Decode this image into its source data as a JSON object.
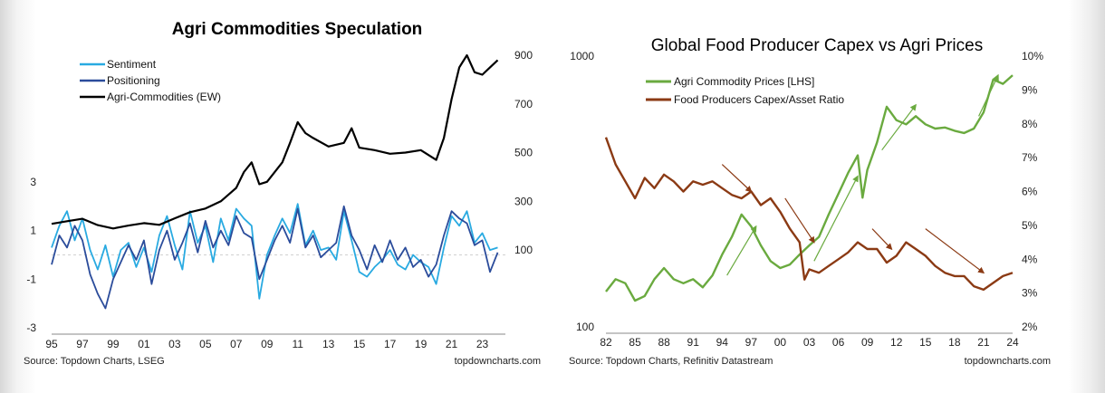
{
  "chart_data": [
    {
      "type": "line",
      "title": "Agri Commodities Speculation",
      "x_ticks": [
        "95",
        "97",
        "99",
        "01",
        "03",
        "05",
        "07",
        "09",
        "11",
        "13",
        "15",
        "17",
        "19",
        "21",
        "23"
      ],
      "xlim": [
        1995,
        2024.5
      ],
      "y_left_ticks": [
        "3",
        "1",
        "-1",
        "-3"
      ],
      "y_left_lim": [
        -3,
        3
      ],
      "y_right_ticks": [
        "900",
        "700",
        "500",
        "300",
        "100"
      ],
      "y_right_lim": [
        -220,
        900
      ],
      "series": [
        {
          "name": "Sentiment",
          "axis": "left",
          "color": "#29aae1",
          "x": [
            1995,
            1995.5,
            1996,
            1996.5,
            1997,
            1997.5,
            1998,
            1998.5,
            1999,
            1999.5,
            2000,
            2000.5,
            2001,
            2001.5,
            2002,
            2002.5,
            2003,
            2003.5,
            2004,
            2004.5,
            2005,
            2005.5,
            2006,
            2006.5,
            2007,
            2007.5,
            2008,
            2008.5,
            2009,
            2009.5,
            2010,
            2010.5,
            2011,
            2011.5,
            2012,
            2012.5,
            2013,
            2013.5,
            2014,
            2014.5,
            2015,
            2015.5,
            2016,
            2016.5,
            2017,
            2017.5,
            2018,
            2018.5,
            2019,
            2019.5,
            2020,
            2020.5,
            2021,
            2021.5,
            2022,
            2022.5,
            2023,
            2023.5,
            2024
          ],
          "y": [
            0.3,
            1.2,
            1.8,
            0.6,
            1.5,
            0.2,
            -0.6,
            0.4,
            -0.9,
            0.2,
            0.5,
            -0.5,
            0.3,
            -0.7,
            0.8,
            1.6,
            0.4,
            -0.6,
            1.8,
            0.5,
            1.2,
            -0.3,
            1.5,
            0.6,
            1.9,
            1.5,
            1.2,
            -1.8,
            0.0,
            0.8,
            1.5,
            0.9,
            2.1,
            0.4,
            1.0,
            0.2,
            0.3,
            -0.2,
            1.8,
            0.6,
            -0.7,
            -0.9,
            -0.5,
            -0.2,
            0.2,
            -0.4,
            -0.6,
            0.0,
            -0.3,
            -0.5,
            -1.2,
            0.3,
            1.6,
            1.2,
            1.8,
            0.5,
            0.9,
            0.2,
            0.3
          ]
        },
        {
          "name": "Positioning",
          "axis": "left",
          "color": "#2b4c9b",
          "x": [
            1995,
            1995.5,
            1996,
            1996.5,
            1997,
            1997.5,
            1998,
            1998.5,
            1999,
            1999.5,
            2000,
            2000.5,
            2001,
            2001.5,
            2002,
            2002.5,
            2003,
            2003.5,
            2004,
            2004.5,
            2005,
            2005.5,
            2006,
            2006.5,
            2007,
            2007.5,
            2008,
            2008.5,
            2009,
            2009.5,
            2010,
            2010.5,
            2011,
            2011.5,
            2012,
            2012.5,
            2013,
            2013.5,
            2014,
            2014.5,
            2015,
            2015.5,
            2016,
            2016.5,
            2017,
            2017.5,
            2018,
            2018.5,
            2019,
            2019.5,
            2020,
            2020.5,
            2021,
            2021.5,
            2022,
            2022.5,
            2023,
            2023.5,
            2024
          ],
          "y": [
            -0.4,
            0.8,
            0.3,
            1.2,
            0.6,
            -0.8,
            -1.6,
            -2.2,
            -1.0,
            -0.3,
            0.4,
            -0.2,
            0.6,
            -1.2,
            0.2,
            1.0,
            -0.2,
            0.5,
            1.3,
            0.1,
            1.4,
            0.3,
            1.0,
            0.4,
            1.6,
            0.9,
            0.7,
            -1.0,
            -0.2,
            0.6,
            1.2,
            0.5,
            1.9,
            0.3,
            0.8,
            -0.1,
            0.2,
            0.5,
            2.0,
            0.8,
            0.2,
            -0.6,
            0.4,
            -0.3,
            0.6,
            -0.2,
            0.3,
            -0.5,
            -0.2,
            -0.9,
            -0.4,
            0.8,
            1.8,
            1.5,
            1.3,
            0.4,
            0.6,
            -0.7,
            0.1
          ]
        },
        {
          "name": "Agri-Commodities (EW)",
          "axis": "right",
          "color": "#000000",
          "x": [
            1995,
            1996,
            1997,
            1998,
            1999,
            2000,
            2001,
            2002,
            2003,
            2004,
            2005,
            2006,
            2007,
            2007.5,
            2008,
            2008.5,
            2009,
            2010,
            2010.5,
            2011,
            2011.5,
            2012,
            2013,
            2014,
            2014.5,
            2015,
            2016,
            2017,
            2018,
            2019,
            2019.5,
            2020,
            2020.5,
            2021,
            2021.5,
            2022,
            2022.5,
            2023,
            2023.5,
            2024
          ],
          "y": [
            207,
            218,
            228,
            202,
            188,
            200,
            210,
            203,
            230,
            255,
            270,
            300,
            355,
            420,
            460,
            370,
            380,
            460,
            540,
            625,
            580,
            560,
            525,
            540,
            600,
            520,
            510,
            495,
            500,
            510,
            490,
            470,
            560,
            720,
            850,
            900,
            830,
            820,
            850,
            880
          ]
        }
      ],
      "source": "Source: Topdown Charts, LSEG",
      "brand": "topdowncharts.com"
    },
    {
      "type": "line",
      "title": "Global Food Producer Capex vs Agri Prices",
      "x_ticks": [
        "82",
        "85",
        "88",
        "91",
        "94",
        "97",
        "00",
        "03",
        "06",
        "09",
        "12",
        "15",
        "18",
        "21",
        "24"
      ],
      "xlim": [
        1982,
        2024
      ],
      "y_left_ticks": [
        "1000",
        "100"
      ],
      "y_left_lim": [
        100,
        1000
      ],
      "y_left_scale": "log",
      "y_right_ticks": [
        "10%",
        "9%",
        "8%",
        "7%",
        "6%",
        "5%",
        "4%",
        "3%",
        "2%"
      ],
      "y_right_lim": [
        2,
        10
      ],
      "series": [
        {
          "name": "Agri Commodity Prices [LHS]",
          "axis": "left",
          "color": "#6aaa3f",
          "x": [
            1982,
            1983,
            1984,
            1985,
            1986,
            1987,
            1988,
            1989,
            1990,
            1991,
            1992,
            1993,
            1994,
            1995,
            1996,
            1997,
            1998,
            1999,
            2000,
            2001,
            2002,
            2003,
            2004,
            2005,
            2006,
            2007,
            2008,
            2008.5,
            2009,
            2010,
            2011,
            2012,
            2013,
            2014,
            2015,
            2016,
            2017,
            2018,
            2019,
            2020,
            2021,
            2022,
            2023,
            2024
          ],
          "y": [
            135,
            150,
            145,
            125,
            130,
            150,
            165,
            150,
            145,
            150,
            140,
            155,
            185,
            215,
            260,
            235,
            200,
            175,
            165,
            170,
            185,
            200,
            215,
            260,
            310,
            370,
            430,
            300,
            380,
            480,
            650,
            580,
            560,
            600,
            560,
            540,
            545,
            530,
            520,
            540,
            620,
            820,
            790,
            850
          ]
        },
        {
          "name": "Food Producers Capex/Asset Ratio",
          "axis": "right",
          "color": "#8b3a14",
          "x": [
            1982,
            1983,
            1984,
            1985,
            1986,
            1987,
            1988,
            1989,
            1990,
            1991,
            1992,
            1993,
            1994,
            1995,
            1996,
            1997,
            1998,
            1999,
            2000,
            2001,
            2002,
            2002.5,
            2003,
            2004,
            2005,
            2006,
            2007,
            2008,
            2009,
            2010,
            2011,
            2012,
            2013,
            2014,
            2015,
            2016,
            2017,
            2018,
            2019,
            2020,
            2021,
            2022,
            2023,
            2024
          ],
          "y": [
            7.6,
            6.8,
            6.3,
            5.8,
            6.4,
            6.1,
            6.5,
            6.3,
            6.0,
            6.3,
            6.2,
            6.3,
            6.1,
            5.9,
            5.8,
            6.0,
            5.6,
            5.8,
            5.4,
            4.9,
            4.5,
            3.4,
            3.7,
            3.6,
            3.8,
            4.0,
            4.2,
            4.5,
            4.3,
            4.3,
            3.9,
            4.1,
            4.5,
            4.3,
            4.1,
            3.8,
            3.6,
            3.5,
            3.5,
            3.2,
            3.1,
            3.3,
            3.5,
            3.6
          ]
        }
      ],
      "annotations": [
        "green arrows marking rising agri prices",
        "brown arrows marking falling capex ratio"
      ],
      "source": "Source: Topdown Charts, Refinitiv Datastream",
      "brand": "topdowncharts.com"
    }
  ]
}
